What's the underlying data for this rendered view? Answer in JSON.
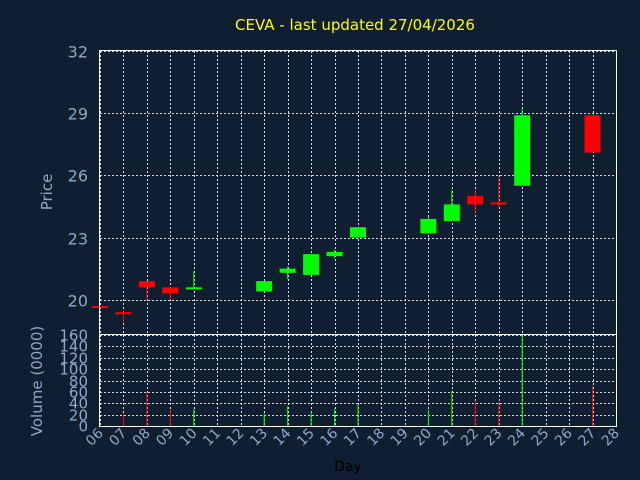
{
  "chart_data": {
    "type": "candlestick",
    "title": "CEVA - last updated 27/04/2026",
    "ylabel": "Price",
    "vlabel": "Volume (0000)",
    "xlabel": "Day",
    "ylim": [
      18.3,
      32
    ],
    "yticks": [
      20,
      23,
      26,
      29,
      32
    ],
    "vlim": [
      0,
      160
    ],
    "vticks": [
      0,
      20,
      40,
      60,
      80,
      100,
      120,
      140,
      160
    ],
    "x_ticks": [
      "06",
      "07",
      "08",
      "09",
      "10",
      "11",
      "12",
      "13",
      "14",
      "15",
      "16",
      "17",
      "18",
      "19",
      "20",
      "21",
      "22",
      "23",
      "24",
      "25",
      "26",
      "27",
      "28"
    ],
    "grid": true,
    "colors": {
      "up": "#00ff00",
      "down": "#ff0000",
      "background": "#0f1e30",
      "grid": "#ffffff",
      "text": "#8fa8c8",
      "title": "#ffff00"
    },
    "candles": [
      {
        "day": "06",
        "open": 19.7,
        "high": 19.7,
        "low": 19.6,
        "close": 19.6,
        "volume": 0
      },
      {
        "day": "07",
        "open": 19.4,
        "high": 19.5,
        "low": 18.9,
        "close": 19.3,
        "volume": 22
      },
      {
        "day": "08",
        "open": 20.9,
        "high": 20.9,
        "low": 20.0,
        "close": 20.6,
        "volume": 60
      },
      {
        "day": "09",
        "open": 20.6,
        "high": 20.6,
        "low": 20.0,
        "close": 20.3,
        "volume": 30
      },
      {
        "day": "10",
        "open": 20.5,
        "high": 21.4,
        "low": 20.5,
        "close": 20.6,
        "volume": 30
      },
      {
        "day": "13",
        "open": 20.4,
        "high": 20.9,
        "low": 20.4,
        "close": 20.9,
        "volume": 22
      },
      {
        "day": "14",
        "open": 21.3,
        "high": 21.6,
        "low": 21.0,
        "close": 21.5,
        "volume": 35
      },
      {
        "day": "15",
        "open": 21.2,
        "high": 22.2,
        "low": 21.2,
        "close": 22.2,
        "volume": 25
      },
      {
        "day": "16",
        "open": 22.1,
        "high": 22.4,
        "low": 22.0,
        "close": 22.3,
        "volume": 30
      },
      {
        "day": "17",
        "open": 23.0,
        "high": 23.5,
        "low": 23.0,
        "close": 23.5,
        "volume": 38
      },
      {
        "day": "20",
        "open": 23.2,
        "high": 24.0,
        "low": 23.2,
        "close": 23.9,
        "volume": 28
      },
      {
        "day": "21",
        "open": 23.8,
        "high": 25.3,
        "low": 23.8,
        "close": 24.6,
        "volume": 62
      },
      {
        "day": "22",
        "open": 25.0,
        "high": 25.3,
        "low": 24.2,
        "close": 24.6,
        "volume": 42
      },
      {
        "day": "23",
        "open": 24.7,
        "high": 25.9,
        "low": 24.4,
        "close": 24.6,
        "volume": 42
      },
      {
        "day": "24",
        "open": 25.5,
        "high": 29.2,
        "low": 25.5,
        "close": 28.9,
        "volume": 160
      },
      {
        "day": "27",
        "open": 28.9,
        "high": 28.9,
        "low": 27.1,
        "close": 27.1,
        "volume": 70
      }
    ]
  }
}
